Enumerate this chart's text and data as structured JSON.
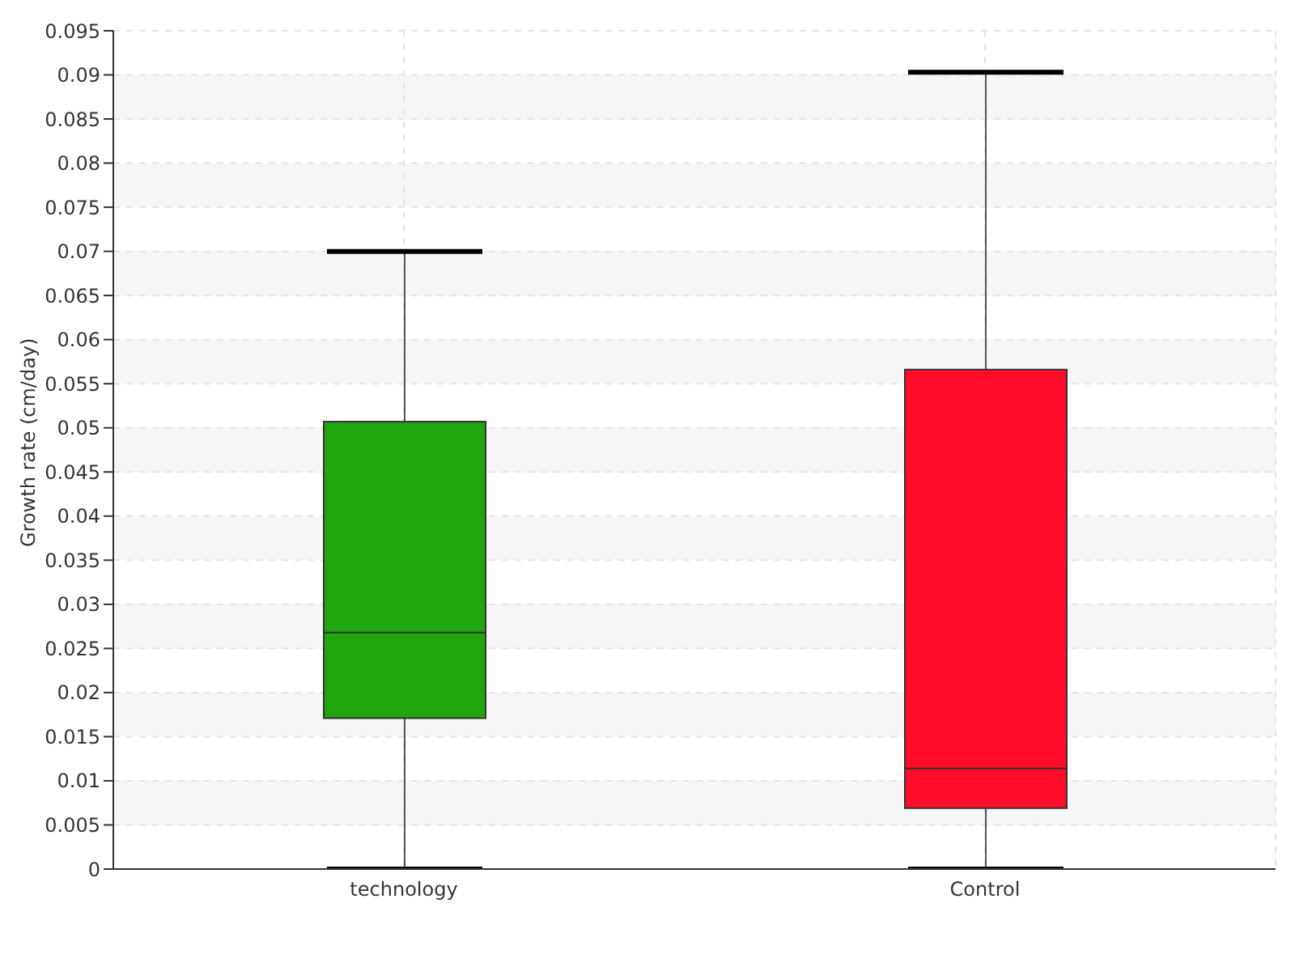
{
  "chart_data": {
    "type": "box",
    "ylabel": "Growth rate (cm/day)",
    "categories": [
      "technology",
      "Control"
    ],
    "colors": [
      "#21a50f",
      "#ff0c28"
    ],
    "boxes": [
      {
        "low": 0,
        "q1": 0.0171,
        "median": 0.0268,
        "q3": 0.0507,
        "high": 0.07
      },
      {
        "low": 0,
        "q1": 0.0069,
        "median": 0.0114,
        "q3": 0.0566,
        "high": 0.0903
      }
    ],
    "ylim": [
      0,
      0.095
    ],
    "yticks": [
      0,
      0.005,
      0.01,
      0.015,
      0.02,
      0.025,
      0.03,
      0.035,
      0.04,
      0.045,
      0.05,
      0.055,
      0.06,
      0.065,
      0.07,
      0.075,
      0.08,
      0.085,
      0.09,
      0.095
    ],
    "grid": true
  }
}
